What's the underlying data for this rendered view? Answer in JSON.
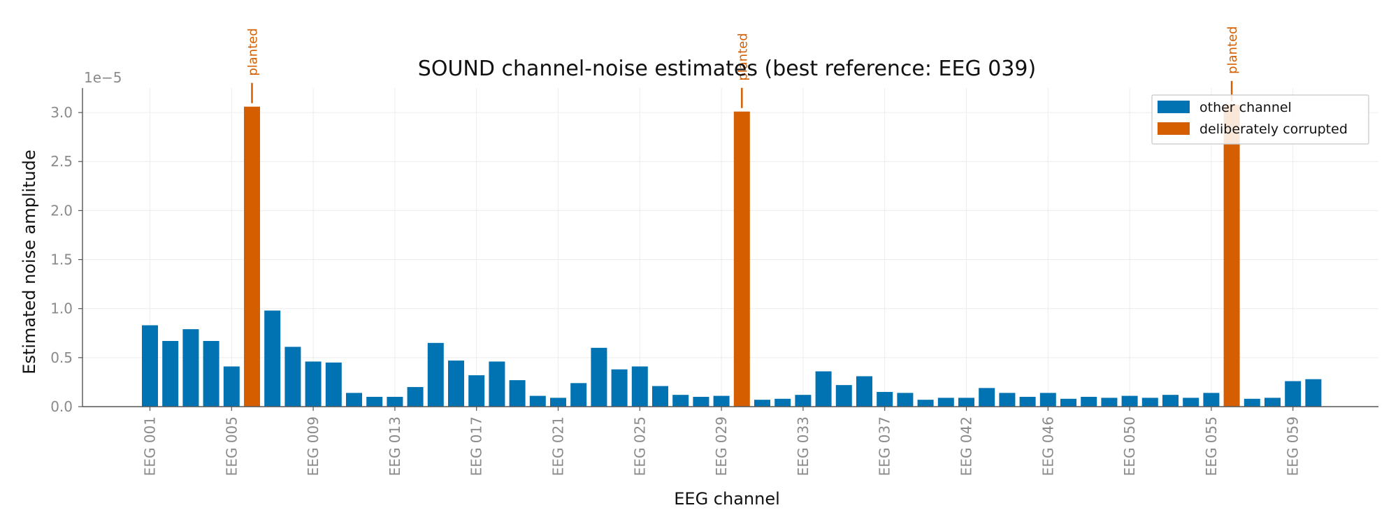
{
  "colors": {
    "other": "#0173b2",
    "corrupted": "#d55e00",
    "axis": "#555555",
    "grid": "#ececec",
    "tick_text": "#8a8a8a"
  },
  "chart_data": {
    "type": "bar",
    "title": "SOUND channel-noise estimates (best reference: EEG 039)",
    "xlabel": "EEG channel",
    "ylabel": "Estimated noise amplitude",
    "y_offset_label": "1e−5",
    "ylim": [
      0,
      3.25
    ],
    "y_ticks": [
      0.0,
      0.5,
      1.0,
      1.5,
      2.0,
      2.5,
      3.0
    ],
    "y_tick_labels": [
      "0.0",
      "0.5",
      "1.0",
      "1.5",
      "2.0",
      "2.5",
      "3.0"
    ],
    "grid": true,
    "legend_position": "top-right",
    "legend": [
      {
        "label": "other channel",
        "color_key": "other"
      },
      {
        "label": "deliberately corrupted",
        "color_key": "corrupted"
      }
    ],
    "annotation_text": "planted",
    "x_tick_labels": [
      "EEG 001",
      "EEG 005",
      "EEG 009",
      "EEG 013",
      "EEG 017",
      "EEG 021",
      "EEG 025",
      "EEG 029",
      "EEG 033",
      "EEG 037",
      "EEG 042",
      "EEG 046",
      "EEG 050",
      "EEG 055",
      "EEG 059"
    ],
    "x_tick_bar_index": [
      0,
      4,
      8,
      12,
      16,
      20,
      24,
      28,
      32,
      36,
      40,
      44,
      48,
      52,
      56
    ],
    "values": [
      0.83,
      0.67,
      0.79,
      0.67,
      0.41,
      3.06,
      0.98,
      0.61,
      0.46,
      0.45,
      0.14,
      0.1,
      0.1,
      0.2,
      0.65,
      0.47,
      0.32,
      0.46,
      0.27,
      0.11,
      0.09,
      0.24,
      0.6,
      0.38,
      0.41,
      0.21,
      0.12,
      0.1,
      0.11,
      3.01,
      0.07,
      0.08,
      0.12,
      0.36,
      0.22,
      0.31,
      0.15,
      0.14,
      0.07,
      0.09,
      0.09,
      0.19,
      0.14,
      0.1,
      0.14,
      0.08,
      0.1,
      0.09,
      0.11,
      0.09,
      0.12,
      0.09,
      0.14,
      3.08,
      0.08,
      0.09,
      0.26,
      0.28
    ],
    "corrupted_indices": [
      5,
      29,
      53
    ]
  }
}
